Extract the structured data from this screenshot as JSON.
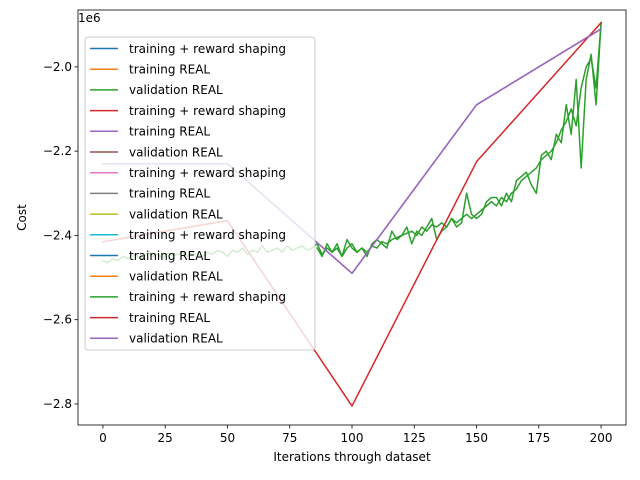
{
  "chart_data": {
    "type": "line",
    "title": "",
    "xlabel": "Iterations through dataset",
    "ylabel": "Cost",
    "offset_text": "1e6",
    "xlim": [
      -10,
      210
    ],
    "ylim": [
      -2.85,
      -1.865
    ],
    "xticks": [
      0,
      25,
      50,
      75,
      100,
      125,
      150,
      175,
      200
    ],
    "yticks": [
      -2.8,
      -2.6,
      -2.4,
      -2.2,
      -2.0
    ],
    "ytick_labels": [
      "−2.8",
      "−2.6",
      "−2.4",
      "−2.2",
      "−2.0"
    ],
    "grid": false,
    "legend_location": "upper-left",
    "series": [
      {
        "name": "training + reward shaping",
        "color": "#1f77b4",
        "x": [],
        "y": []
      },
      {
        "name": "training REAL",
        "color": "#ff7f0e",
        "x": [],
        "y": []
      },
      {
        "name": "validation REAL",
        "color": "#2ca02c",
        "x": [
          0,
          2,
          4,
          6,
          8,
          10,
          12,
          14,
          16,
          18,
          20,
          22,
          24,
          26,
          28,
          30,
          32,
          34,
          36,
          38,
          40,
          42,
          44,
          46,
          48,
          50,
          52,
          54,
          56,
          58,
          60,
          62,
          64,
          66,
          68,
          70,
          72,
          74,
          76,
          78,
          80,
          82,
          84,
          86,
          88,
          90,
          92,
          94,
          96,
          98,
          100,
          102,
          104,
          106,
          108,
          110,
          112,
          114,
          116,
          118,
          120,
          122,
          124,
          126,
          128,
          130,
          132,
          134,
          136,
          138,
          140,
          142,
          144,
          146,
          148,
          150,
          152,
          154,
          156,
          158,
          160,
          162,
          164,
          166,
          168,
          170,
          172,
          174,
          176,
          178,
          180,
          182,
          184,
          186,
          188,
          190,
          192,
          194,
          196,
          198,
          200
        ],
        "y": [
          -2.46,
          -2.465,
          -2.455,
          -2.46,
          -2.45,
          -2.455,
          -2.445,
          -2.45,
          -2.455,
          -2.44,
          -2.45,
          -2.445,
          -2.455,
          -2.44,
          -2.45,
          -2.445,
          -2.44,
          -2.45,
          -2.44,
          -2.445,
          -2.45,
          -2.44,
          -2.445,
          -2.435,
          -2.44,
          -2.45,
          -2.435,
          -2.44,
          -2.43,
          -2.445,
          -2.435,
          -2.44,
          -2.425,
          -2.44,
          -2.435,
          -2.43,
          -2.44,
          -2.425,
          -2.435,
          -2.43,
          -2.425,
          -2.435,
          -2.43,
          -2.42,
          -2.445,
          -2.43,
          -2.44,
          -2.42,
          -2.45,
          -2.43,
          -2.42,
          -2.44,
          -2.43,
          -2.44,
          -2.425,
          -2.43,
          -2.415,
          -2.42,
          -2.41,
          -2.405,
          -2.4,
          -2.395,
          -2.39,
          -2.4,
          -2.38,
          -2.39,
          -2.375,
          -2.38,
          -2.37,
          -2.38,
          -2.36,
          -2.37,
          -2.36,
          -2.35,
          -2.36,
          -2.35,
          -2.34,
          -2.33,
          -2.32,
          -2.33,
          -2.31,
          -2.32,
          -2.3,
          -2.29,
          -2.27,
          -2.26,
          -2.25,
          -2.24,
          -2.22,
          -2.21,
          -2.2,
          -2.18,
          -2.15,
          -2.13,
          -2.1,
          -2.14,
          -2.05,
          -2.0,
          -1.98,
          -2.05,
          -1.895
        ]
      },
      {
        "name": "training + reward shaping",
        "color": "#d62728",
        "x": [],
        "y": []
      },
      {
        "name": "training REAL",
        "color": "#9467bd",
        "x": [],
        "y": []
      },
      {
        "name": "validation REAL",
        "color": "#8c564b",
        "x": [],
        "y": []
      },
      {
        "name": "training + reward shaping",
        "color": "#e377c2",
        "x": [
          0,
          50,
          100,
          150,
          200
        ],
        "y": [
          -2.23,
          -2.23,
          -2.49,
          -2.09,
          -1.91
        ]
      },
      {
        "name": "training REAL",
        "color": "#7f7f7f",
        "x": [],
        "y": []
      },
      {
        "name": "validation REAL",
        "color": "#bcbd22",
        "x": [],
        "y": []
      },
      {
        "name": "training + reward shaping",
        "color": "#17becf",
        "x": [],
        "y": []
      },
      {
        "name": "training REAL",
        "color": "#1f77b4",
        "x": [],
        "y": []
      },
      {
        "name": "validation REAL",
        "color": "#ff7f0e",
        "x": [],
        "y": []
      },
      {
        "name": "training + reward shaping",
        "color": "#2ca02c",
        "x": [
          86,
          88,
          90,
          92,
          94,
          96,
          98,
          100,
          102,
          104,
          106,
          108,
          110,
          112,
          114,
          116,
          118,
          120,
          122,
          124,
          126,
          128,
          130,
          132,
          134,
          136,
          138,
          140,
          142,
          144,
          146,
          148,
          150,
          152,
          154,
          156,
          158,
          160,
          162,
          164,
          166,
          168,
          170,
          172,
          174,
          176,
          178,
          180,
          182,
          184,
          186,
          188,
          190,
          192,
          194,
          196,
          198,
          200
        ],
        "y": [
          -2.43,
          -2.45,
          -2.42,
          -2.44,
          -2.43,
          -2.45,
          -2.41,
          -2.43,
          -2.44,
          -2.43,
          -2.45,
          -2.42,
          -2.41,
          -2.42,
          -2.43,
          -2.39,
          -2.41,
          -2.4,
          -2.38,
          -2.42,
          -2.39,
          -2.4,
          -2.38,
          -2.36,
          -2.41,
          -2.39,
          -2.38,
          -2.36,
          -2.38,
          -2.37,
          -2.3,
          -2.35,
          -2.36,
          -2.35,
          -2.32,
          -2.31,
          -2.31,
          -2.33,
          -2.3,
          -2.32,
          -2.27,
          -2.26,
          -2.25,
          -2.28,
          -2.3,
          -2.21,
          -2.2,
          -2.22,
          -2.16,
          -2.18,
          -2.09,
          -2.16,
          -2.03,
          -2.24,
          -2.03,
          -1.97,
          -2.09,
          -1.895
        ]
      },
      {
        "name": "training REAL",
        "color": "#d62728",
        "x": [
          0,
          50,
          100,
          150,
          200
        ],
        "y": [
          -2.415,
          -2.365,
          -2.805,
          -2.225,
          -1.895
        ]
      },
      {
        "name": "validation REAL",
        "color": "#9467bd",
        "x": [
          0,
          50,
          100,
          150,
          200
        ],
        "y": [
          -2.23,
          -2.23,
          -2.49,
          -2.09,
          -1.91
        ]
      }
    ]
  }
}
